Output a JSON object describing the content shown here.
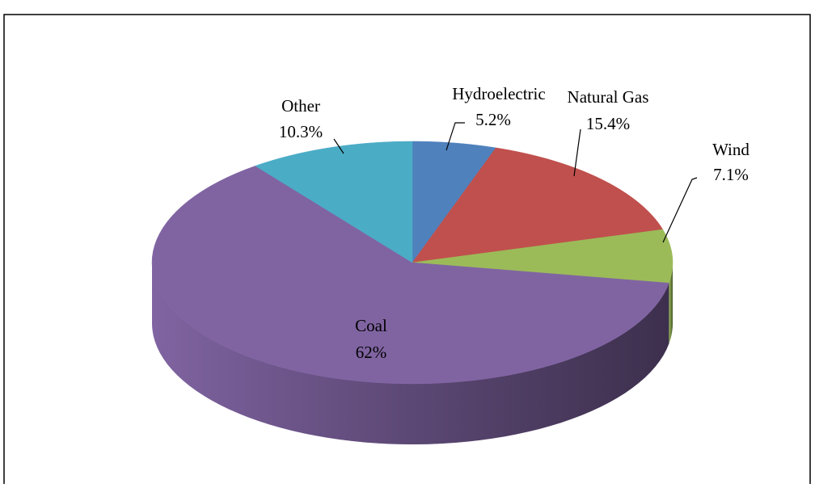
{
  "chart_data": {
    "type": "pie3d",
    "categories": [
      "Hydroelectric",
      "Natural Gas",
      "Wind",
      "Coal",
      "Other"
    ],
    "values": [
      5.2,
      15.4,
      7.1,
      62,
      10.3
    ],
    "value_labels": [
      "5.2%",
      "15.4%",
      "7.1%",
      "62%",
      "10.3%"
    ],
    "colors": [
      "#4f81bd",
      "#c0504d",
      "#9bbb59",
      "#8064a2",
      "#4bacc6"
    ],
    "start_angle": 0,
    "direction": "clockwise"
  }
}
